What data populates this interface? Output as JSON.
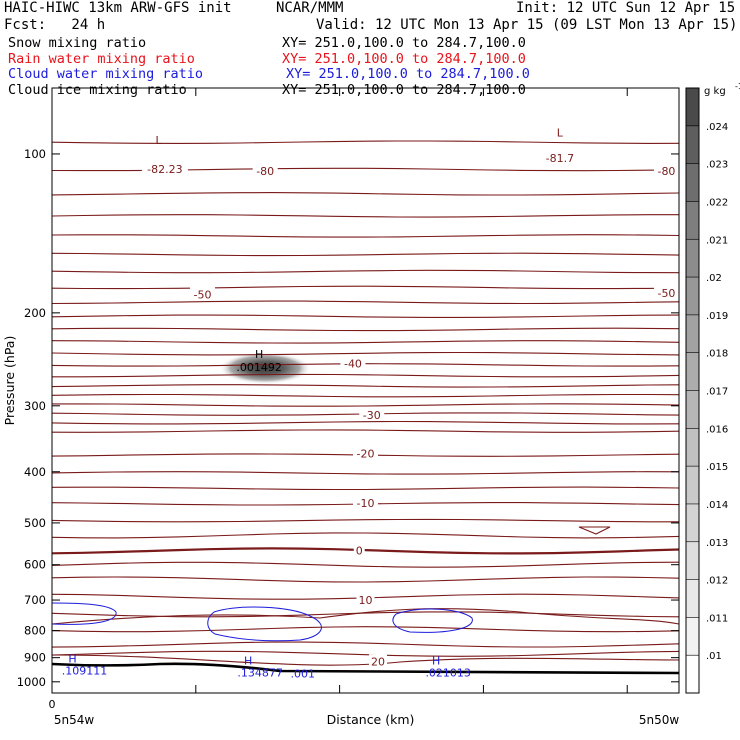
{
  "header": {
    "title": "HAIC-HIWC 13km ARW-GFS init",
    "org": "NCAR/MMM",
    "init": "Init: 12 UTC Sun 12 Apr 15",
    "fcst": "Fcst:   24 h",
    "valid": "Valid: 12 UTC Mon 13 Apr 15 (09 LST Mon 13 Apr 15)"
  },
  "fields": [
    {
      "name": "Snow mixing ratio",
      "xy": "XY= 251.0,100.0 to 284.7,100.0",
      "color": "#000000"
    },
    {
      "name": "Rain water mixing ratio",
      "xy": "XY= 251.0,100.0 to 284.7,100.0",
      "color": "#e8141c"
    },
    {
      "name": "Cloud water mixing ratio",
      "xy": "XY= 251.0,100.0 to 284.7,100.0",
      "color": "#1c1cdc"
    },
    {
      "name": "Cloud ice mixing ratio",
      "xy": "XY= 251.0,100.0 to 284.7,100.0",
      "color": "#000000"
    }
  ],
  "chart_data": {
    "type": "contour",
    "xlabel": "Distance (km)",
    "ylabel": "Pressure (hPa)",
    "x_tick_labels": [
      "0"
    ],
    "x_left_label": "5n54w",
    "x_right_label": "5n50w",
    "y_scale": "log",
    "ylim": [
      1050,
      75
    ],
    "y_ticks": [
      100,
      200,
      300,
      400,
      500,
      600,
      700,
      800,
      900,
      1000
    ],
    "y_tick_labels": [
      "100",
      "200",
      "300",
      "400",
      "500",
      "600",
      "700",
      "800",
      "900",
      "1000"
    ],
    "colorbar": {
      "unit": "g kg",
      "unit_exp": "-1",
      "levels": [
        ".01",
        ".011",
        ".012",
        ".013",
        ".014",
        ".015",
        ".016",
        ".017",
        ".018",
        ".019",
        ".02",
        ".021",
        ".022",
        ".023",
        ".024"
      ],
      "colors": [
        "#ffffff",
        "#f2f2f2",
        "#e8e8e8",
        "#dedede",
        "#d4d4d4",
        "#cacaca",
        "#c0c0c0",
        "#b6b6b6",
        "#acacac",
        "#a2a2a2",
        "#989898",
        "#8c8c8c",
        "#7e7e7e",
        "#6e6e6e",
        "#5e5e5e",
        "#4a4a4a"
      ]
    },
    "temperature_contours": {
      "color": "#7a1a1a",
      "labels": [
        {
          "text": "-82.23",
          "x": 0.18,
          "p": 107
        },
        {
          "text": "-80",
          "x": 0.34,
          "p": 108
        },
        {
          "text": "-81.7",
          "x": 0.81,
          "p": 102
        },
        {
          "text": "-80",
          "x": 0.98,
          "p": 108
        },
        {
          "text": "-50",
          "x": 0.24,
          "p": 185
        },
        {
          "text": "-50",
          "x": 0.98,
          "p": 184
        },
        {
          "text": "-40",
          "x": 0.48,
          "p": 250
        },
        {
          "text": "-30",
          "x": 0.51,
          "p": 313
        },
        {
          "text": "-20",
          "x": 0.5,
          "p": 370
        },
        {
          "text": "-10",
          "x": 0.5,
          "p": 459
        },
        {
          "text": "0",
          "x": 0.49,
          "p": 565
        },
        {
          "text": "10",
          "x": 0.5,
          "p": 701
        },
        {
          "text": "20",
          "x": 0.52,
          "p": 918
        }
      ],
      "extrema": [
        {
          "text": "L",
          "x": 0.17,
          "p": 94
        },
        {
          "text": "L",
          "x": 0.81,
          "p": 91
        }
      ]
    },
    "snow_max": {
      "text": "H",
      "value": ".001492",
      "x": 0.34,
      "p": 248
    },
    "cloud_water": {
      "color": "#1c1cdc",
      "labels": [
        {
          "text": "H",
          "value": ".109111",
          "x": 0.02,
          "p": 928
        },
        {
          "text": "H",
          "value": ".134877",
          "x": 0.3,
          "p": 935
        },
        {
          "text": ".001",
          "x": 0.4,
          "p": 965
        },
        {
          "text": "H",
          "value": ".021013",
          "x": 0.6,
          "p": 935
        }
      ]
    }
  }
}
